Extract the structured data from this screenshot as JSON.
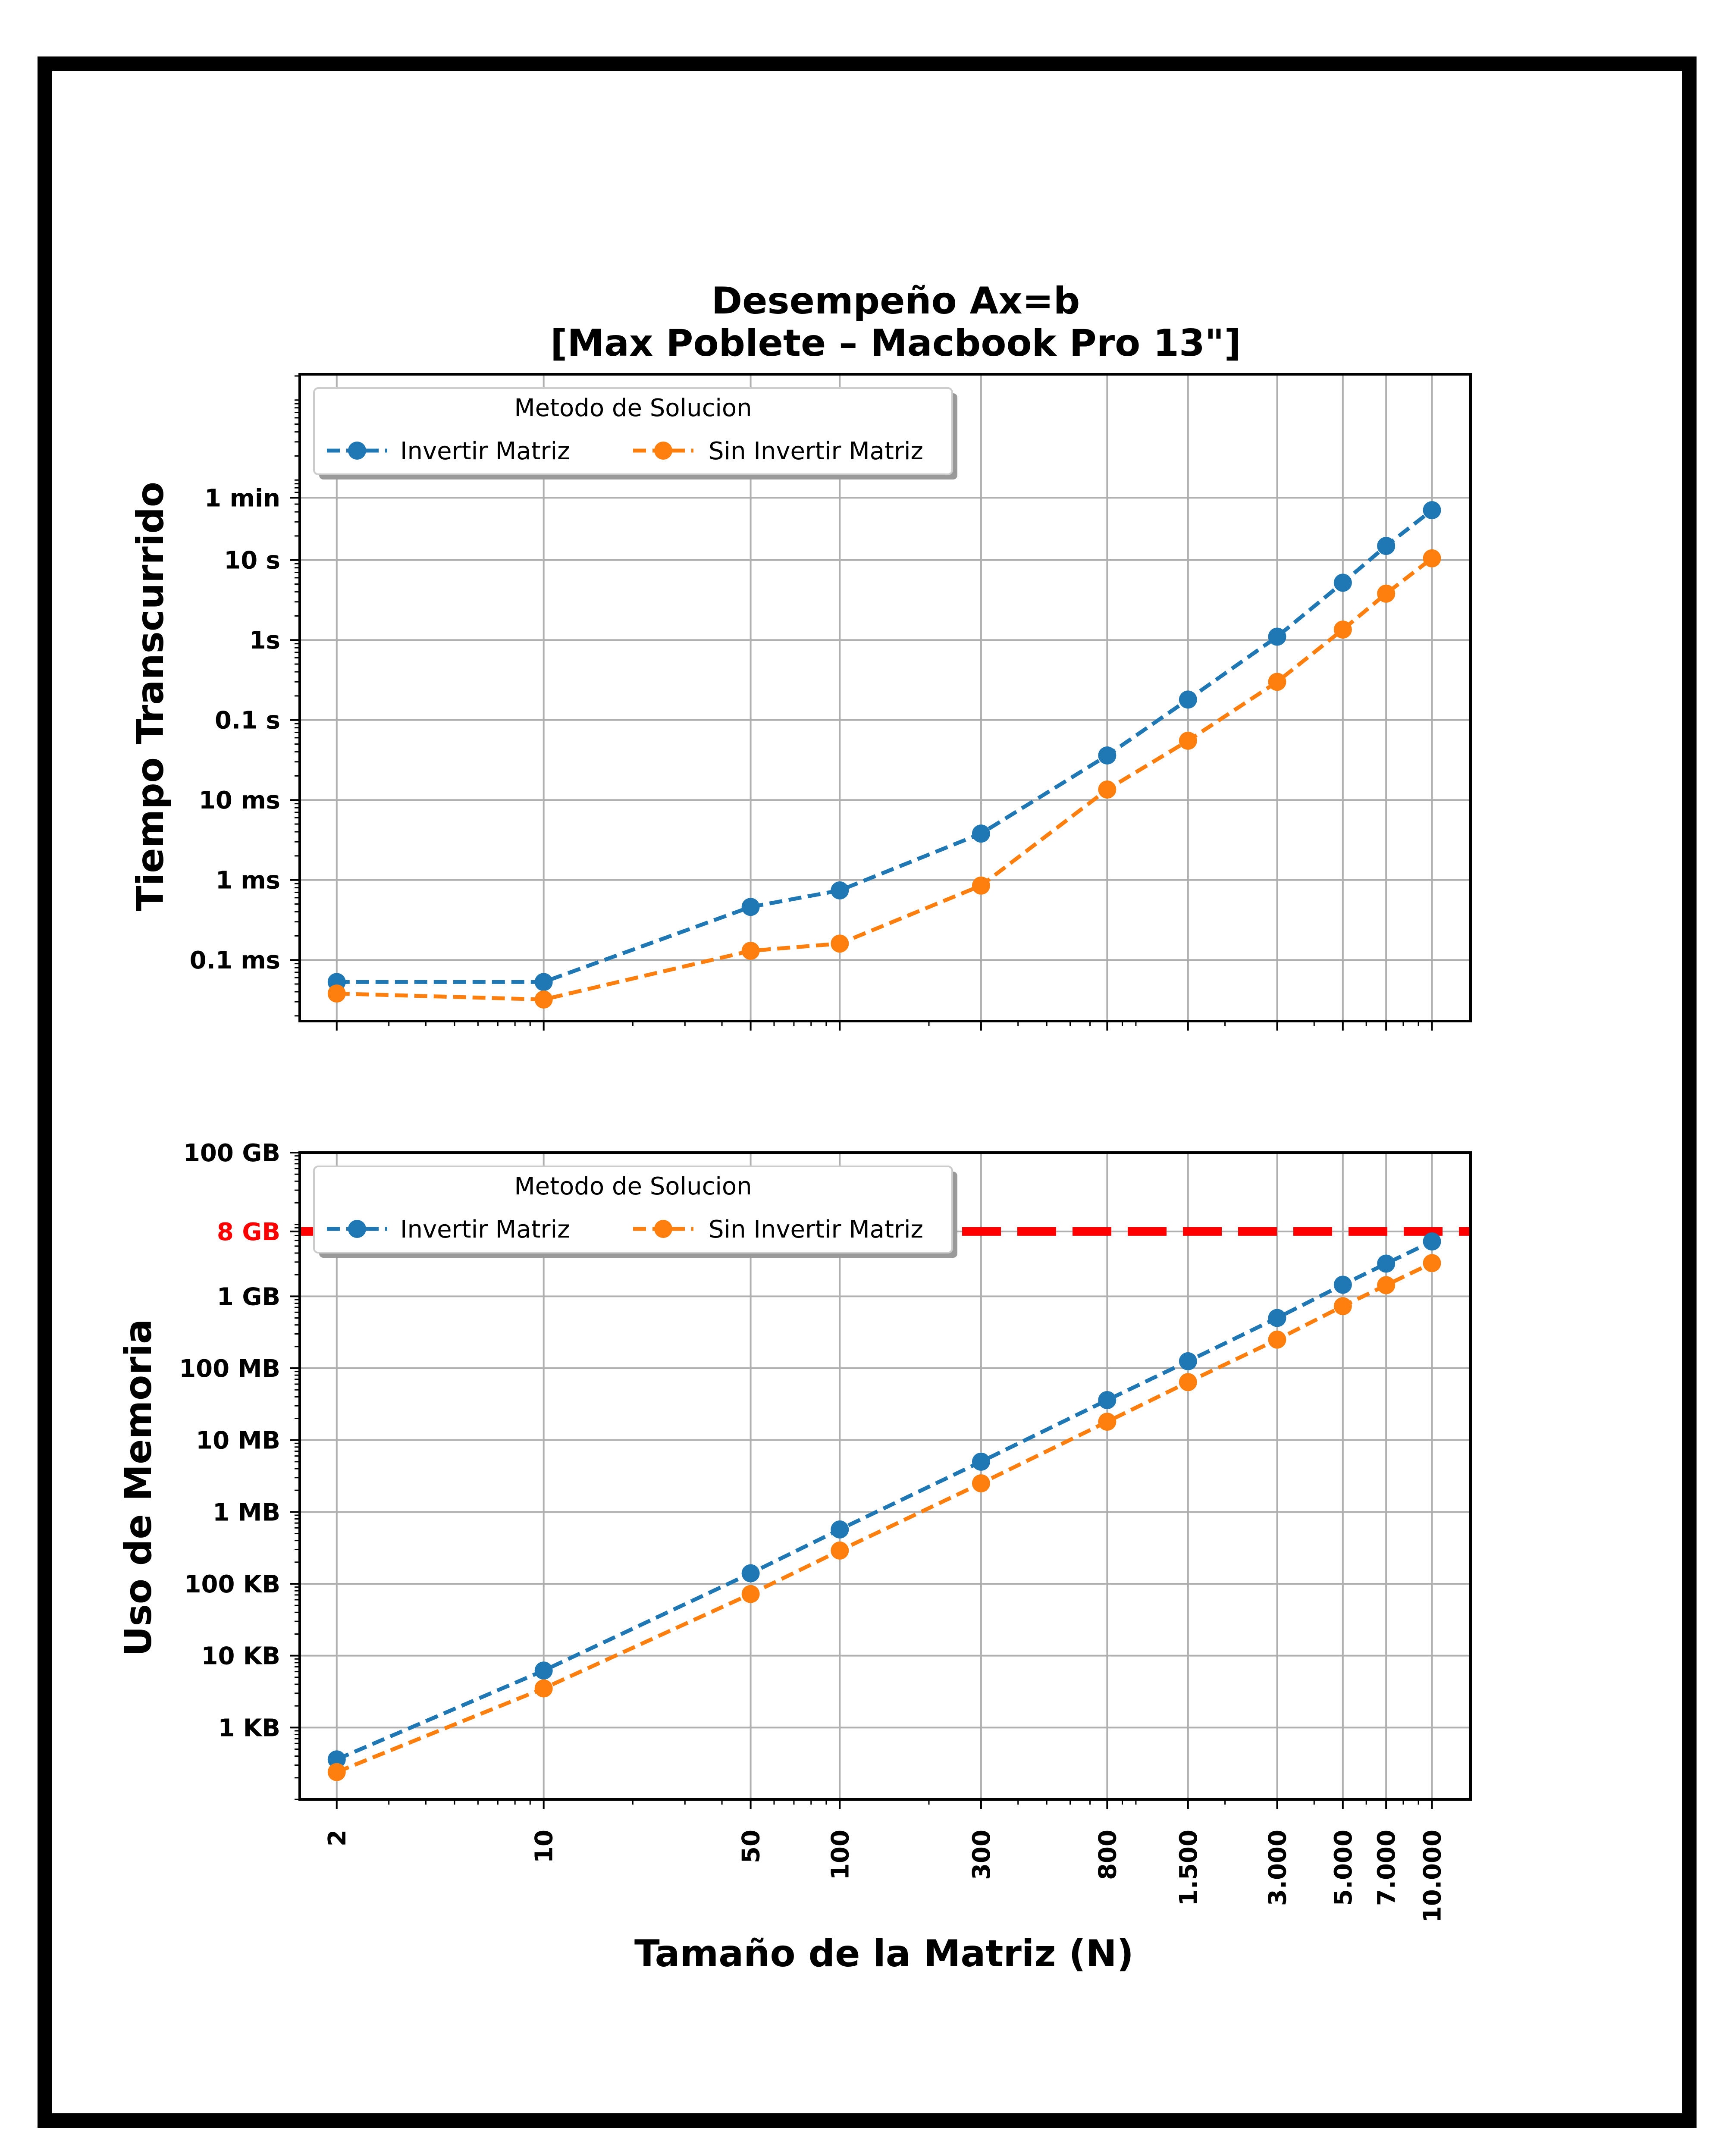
{
  "chart_data": [
    {
      "type": "line",
      "title": "Desempeño Ax=b",
      "subtitle": "[Max Poblete – Macbook Pro 13\"]",
      "ylabel": "Tiempo Transcurrido",
      "xscale": "log",
      "yscale": "log",
      "grid": true,
      "legend_title": "Metodo de Solucion",
      "legend_position": "upper-left",
      "x": [
        2,
        10,
        50,
        100,
        300,
        800,
        1500,
        3000,
        5000,
        7000,
        10000
      ],
      "ylim_seconds": [
        1.72e-05,
        2100
      ],
      "yticks": [
        {
          "value": 0.0001,
          "label": "0.1 ms"
        },
        {
          "value": 0.001,
          "label": "1 ms"
        },
        {
          "value": 0.01,
          "label": "10 ms"
        },
        {
          "value": 0.1,
          "label": "0.1 s"
        },
        {
          "value": 1,
          "label": "1s"
        },
        {
          "value": 10,
          "label": "10 s"
        },
        {
          "value": 60,
          "label": "1 min"
        }
      ],
      "series": [
        {
          "name": "Invertir Matriz",
          "color": "#1f77b4",
          "values": [
            5.3e-05,
            5.3e-05,
            0.00046,
            0.00074,
            0.0038,
            0.036,
            0.18,
            1.1,
            5.2,
            15,
            42
          ]
        },
        {
          "name": "Sin Invertir Matriz",
          "color": "#ff7f0e",
          "values": [
            3.8e-05,
            3.2e-05,
            0.00013,
            0.00016,
            0.00085,
            0.0135,
            0.055,
            0.3,
            1.35,
            3.8,
            10.5
          ]
        }
      ]
    },
    {
      "type": "line",
      "ylabel": "Uso de Memoria",
      "xlabel": "Tamaño de la Matriz (N)",
      "xscale": "log",
      "yscale": "log",
      "grid": true,
      "legend_title": "Metodo de Solucion",
      "legend_position": "upper-left",
      "x": [
        2,
        10,
        50,
        100,
        300,
        800,
        1500,
        3000,
        5000,
        7000,
        10000
      ],
      "xticklabels": [
        "2",
        "10",
        "50",
        "100",
        "300",
        "800",
        "1.500",
        "3.000",
        "5.000",
        "7.000",
        "10.000"
      ],
      "ylim_bytes": [
        100,
        100000000000
      ],
      "yticks": [
        {
          "value": 1000,
          "label": "1 KB"
        },
        {
          "value": 10000,
          "label": "10 KB"
        },
        {
          "value": 100000,
          "label": "100 KB"
        },
        {
          "value": 1000000,
          "label": "1 MB"
        },
        {
          "value": 10000000,
          "label": "10 MB"
        },
        {
          "value": 100000000,
          "label": "100 MB"
        },
        {
          "value": 1000000000,
          "label": "1 GB"
        },
        {
          "value": 8000000000,
          "label": "8 GB",
          "color": "#ff0000"
        },
        {
          "value": 100000000000,
          "label": "100 GB"
        }
      ],
      "hline": {
        "value": 8000000000,
        "label": "8 GB",
        "color": "#ff0000"
      },
      "series": [
        {
          "name": "Invertir Matriz",
          "color": "#1f77b4",
          "values": [
            360,
            6200,
            140000,
            570000,
            5000000,
            36000000,
            125000000,
            500000000,
            1450000000,
            2850000000,
            5800000000
          ]
        },
        {
          "name": "Sin Invertir Matriz",
          "color": "#ff7f0e",
          "values": [
            240,
            3500,
            72000,
            290000,
            2500000,
            18000000,
            64000000,
            250000000,
            730000000,
            1430000000,
            2900000000
          ]
        }
      ]
    }
  ]
}
